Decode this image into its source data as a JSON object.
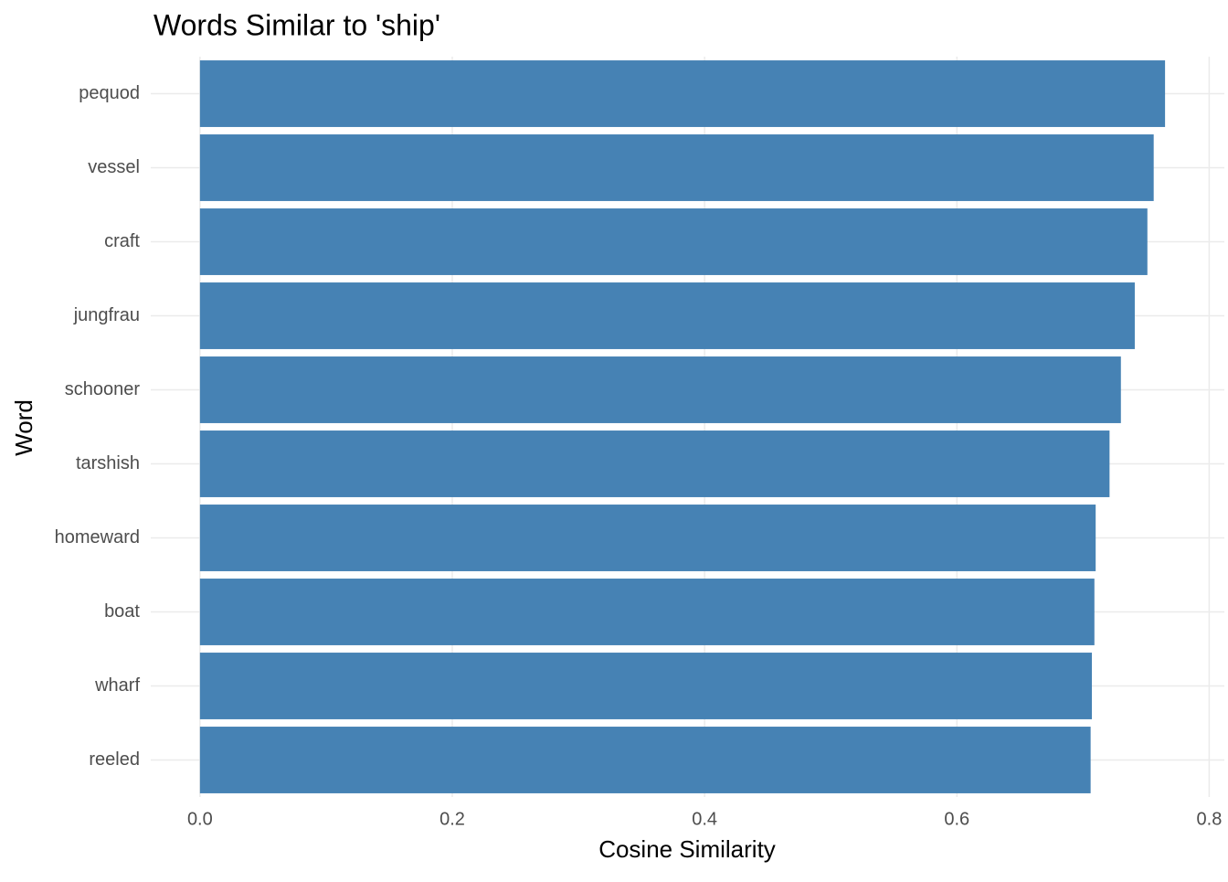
{
  "chart_data": {
    "type": "bar",
    "orientation": "horizontal",
    "title": "Words Similar to 'ship'",
    "x_label": "Cosine Similarity",
    "y_label": "Word",
    "categories": [
      "pequod",
      "vessel",
      "craft",
      "jungfrau",
      "schooner",
      "tarshish",
      "homeward",
      "boat",
      "wharf",
      "reeled"
    ],
    "values": [
      0.765,
      0.756,
      0.751,
      0.741,
      0.73,
      0.721,
      0.71,
      0.709,
      0.707,
      0.706
    ],
    "color": "#4682b4",
    "xlim": [
      -0.039,
      0.812
    ],
    "xticks": [
      {
        "value": 0,
        "label": "0.0"
      },
      0.2,
      0.4,
      0.6,
      0.8
    ],
    "grid": true
  }
}
